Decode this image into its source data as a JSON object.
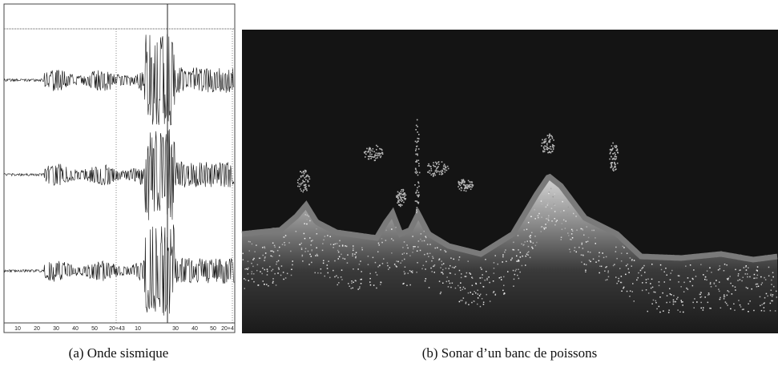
{
  "figure": {
    "panel_a": {
      "caption": "(a)  Onde sismique",
      "axis_labels": [
        "10",
        "20",
        "30",
        "40",
        "50",
        "20+43",
        "10",
        "30",
        "40",
        "50",
        "20+4"
      ]
    },
    "panel_b": {
      "caption": "(b)  Sonar d’un banc de poissons"
    }
  }
}
